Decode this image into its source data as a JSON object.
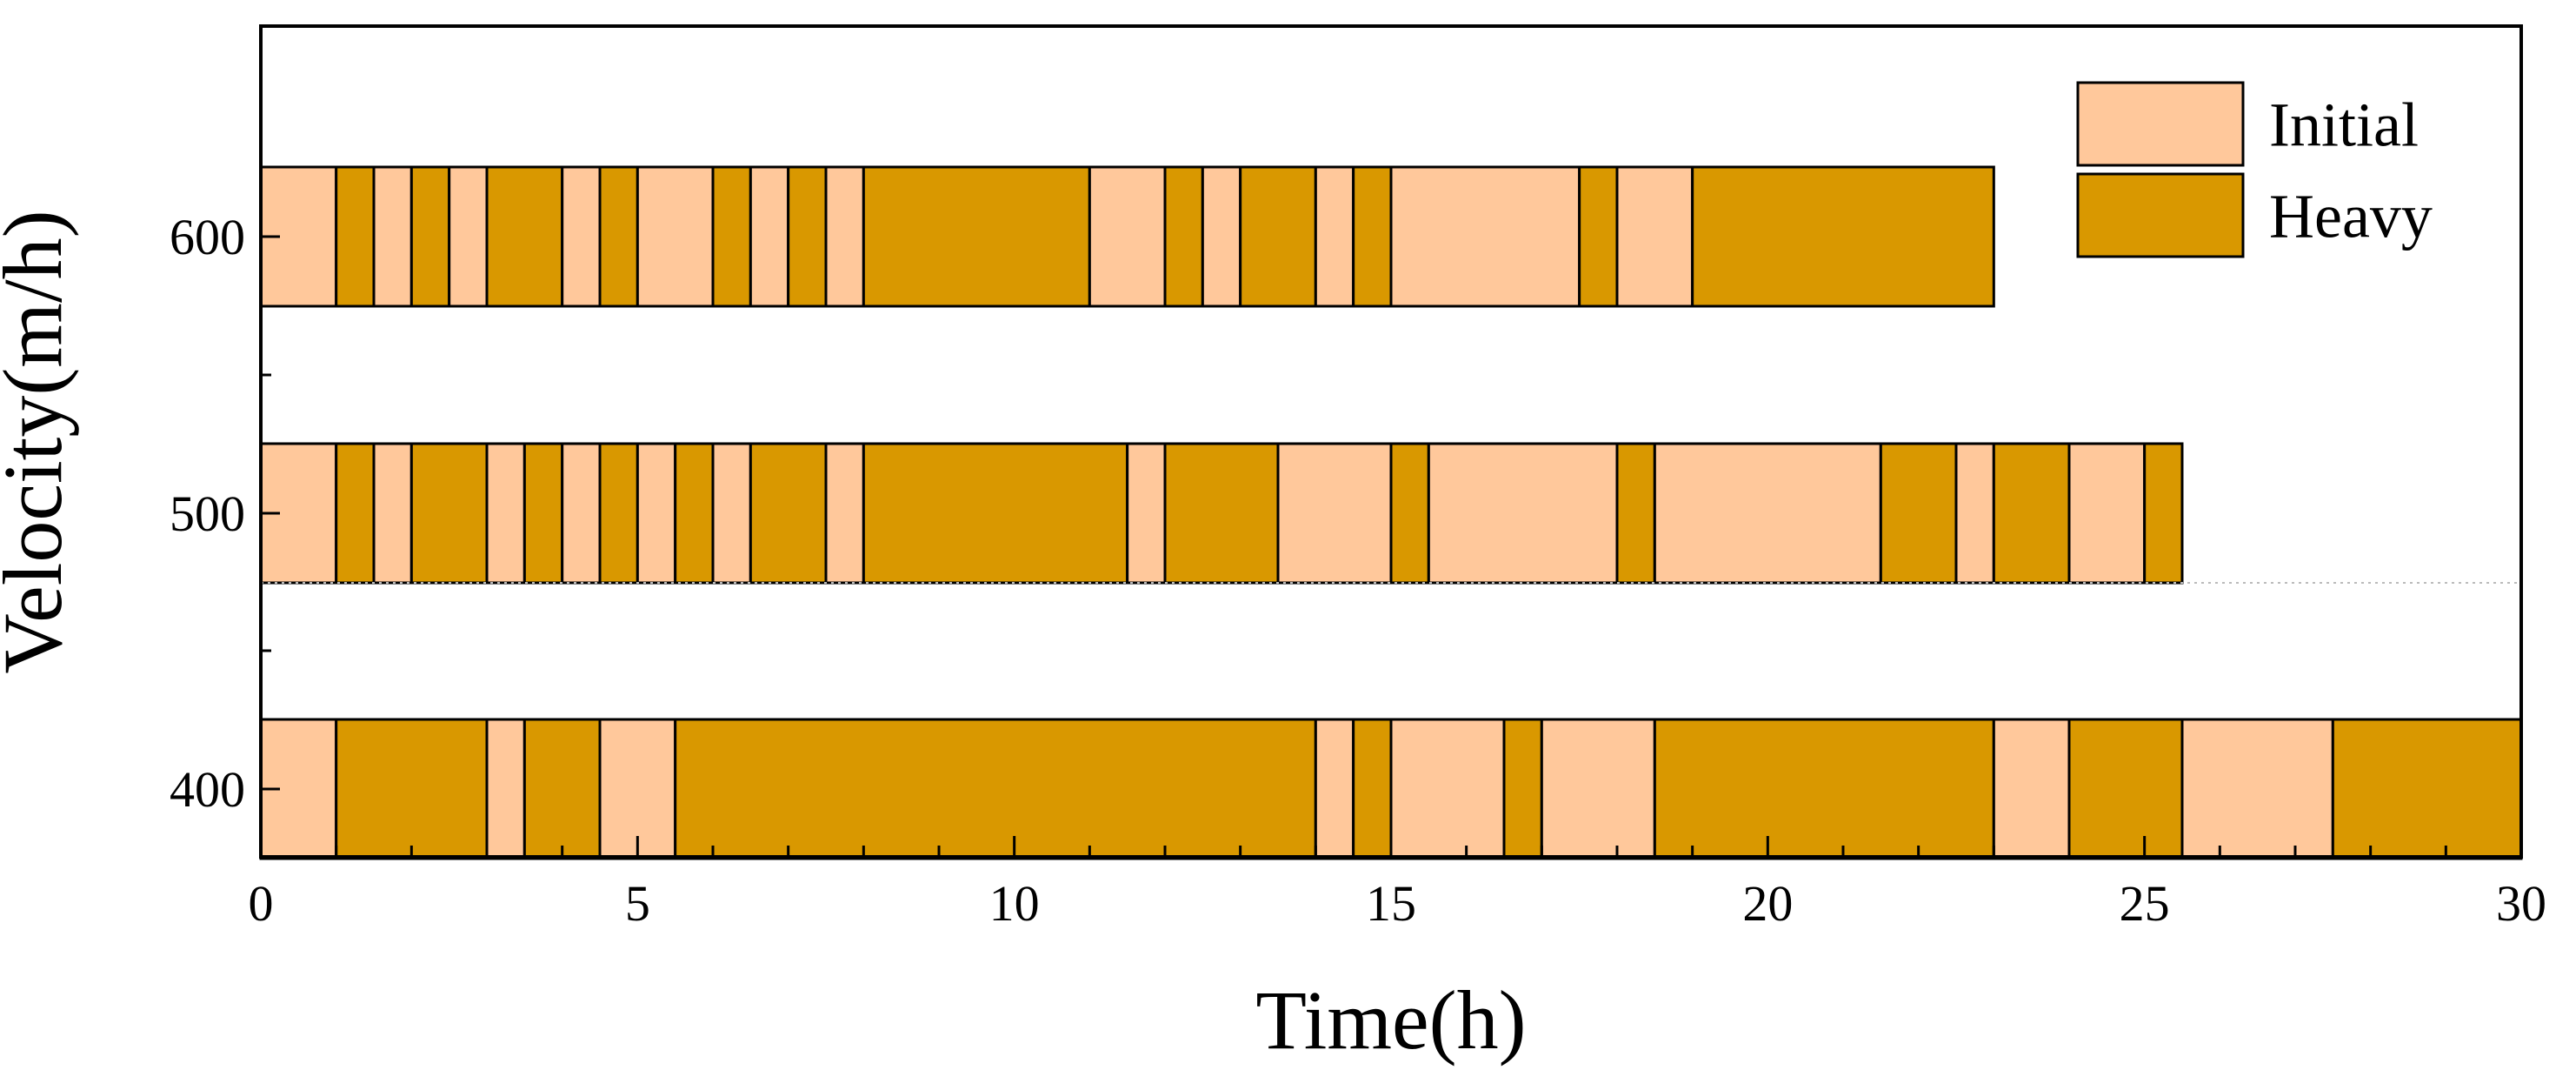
{
  "chart_data": {
    "type": "bar",
    "subtype": "horizontal-stacked-timeline",
    "xlabel": "Time(h)",
    "ylabel": "Velocity(m/h)",
    "xlim": [
      0,
      30
    ],
    "x_ticks": [
      "0",
      "5",
      "10",
      "15",
      "20",
      "25",
      "30"
    ],
    "categories": [
      "600",
      "500",
      "400"
    ],
    "grid": false,
    "legend_position": "top-right",
    "legend": [
      {
        "key": "Initial",
        "label": "Initial",
        "color": "#FFC89B"
      },
      {
        "key": "Heavy",
        "label": "Heavy",
        "color": "#D99800"
      }
    ],
    "series": [
      {
        "velocity": "600",
        "segments": [
          {
            "start": 0,
            "end": 1,
            "state": "Initial"
          },
          {
            "start": 1,
            "end": 1.5,
            "state": "Heavy"
          },
          {
            "start": 1.5,
            "end": 2,
            "state": "Initial"
          },
          {
            "start": 2,
            "end": 2.5,
            "state": "Heavy"
          },
          {
            "start": 2.5,
            "end": 3,
            "state": "Initial"
          },
          {
            "start": 3,
            "end": 4,
            "state": "Heavy"
          },
          {
            "start": 4,
            "end": 4.5,
            "state": "Initial"
          },
          {
            "start": 4.5,
            "end": 5,
            "state": "Heavy"
          },
          {
            "start": 5,
            "end": 6,
            "state": "Initial"
          },
          {
            "start": 6,
            "end": 6.5,
            "state": "Heavy"
          },
          {
            "start": 6.5,
            "end": 7,
            "state": "Initial"
          },
          {
            "start": 7,
            "end": 7.5,
            "state": "Heavy"
          },
          {
            "start": 7.5,
            "end": 8,
            "state": "Initial"
          },
          {
            "start": 8,
            "end": 11,
            "state": "Heavy"
          },
          {
            "start": 11,
            "end": 12,
            "state": "Initial"
          },
          {
            "start": 12,
            "end": 12.5,
            "state": "Heavy"
          },
          {
            "start": 12.5,
            "end": 13,
            "state": "Initial"
          },
          {
            "start": 13,
            "end": 14,
            "state": "Heavy"
          },
          {
            "start": 14,
            "end": 14.5,
            "state": "Initial"
          },
          {
            "start": 14.5,
            "end": 15,
            "state": "Heavy"
          },
          {
            "start": 15,
            "end": 17.5,
            "state": "Initial"
          },
          {
            "start": 17.5,
            "end": 18,
            "state": "Heavy"
          },
          {
            "start": 18,
            "end": 19,
            "state": "Initial"
          },
          {
            "start": 19,
            "end": 23,
            "state": "Heavy"
          }
        ]
      },
      {
        "velocity": "500",
        "segments": [
          {
            "start": 0,
            "end": 1,
            "state": "Initial"
          },
          {
            "start": 1,
            "end": 1.5,
            "state": "Heavy"
          },
          {
            "start": 1.5,
            "end": 2,
            "state": "Initial"
          },
          {
            "start": 2,
            "end": 3,
            "state": "Heavy"
          },
          {
            "start": 3,
            "end": 3.5,
            "state": "Initial"
          },
          {
            "start": 3.5,
            "end": 4,
            "state": "Heavy"
          },
          {
            "start": 4,
            "end": 4.5,
            "state": "Initial"
          },
          {
            "start": 4.5,
            "end": 5,
            "state": "Heavy"
          },
          {
            "start": 5,
            "end": 5.5,
            "state": "Initial"
          },
          {
            "start": 5.5,
            "end": 6,
            "state": "Heavy"
          },
          {
            "start": 6,
            "end": 6.5,
            "state": "Initial"
          },
          {
            "start": 6.5,
            "end": 7.5,
            "state": "Heavy"
          },
          {
            "start": 7.5,
            "end": 8,
            "state": "Initial"
          },
          {
            "start": 8,
            "end": 11.5,
            "state": "Heavy"
          },
          {
            "start": 11.5,
            "end": 12,
            "state": "Initial"
          },
          {
            "start": 12,
            "end": 13.5,
            "state": "Heavy"
          },
          {
            "start": 13.5,
            "end": 15,
            "state": "Initial"
          },
          {
            "start": 15,
            "end": 15.5,
            "state": "Heavy"
          },
          {
            "start": 15.5,
            "end": 18,
            "state": "Initial"
          },
          {
            "start": 18,
            "end": 18.5,
            "state": "Heavy"
          },
          {
            "start": 18.5,
            "end": 21.5,
            "state": "Initial"
          },
          {
            "start": 21.5,
            "end": 22.5,
            "state": "Heavy"
          },
          {
            "start": 22.5,
            "end": 23,
            "state": "Initial"
          },
          {
            "start": 23,
            "end": 24,
            "state": "Heavy"
          },
          {
            "start": 24,
            "end": 25,
            "state": "Initial"
          },
          {
            "start": 25,
            "end": 25.5,
            "state": "Heavy"
          }
        ]
      },
      {
        "velocity": "400",
        "segments": [
          {
            "start": 0,
            "end": 1,
            "state": "Initial"
          },
          {
            "start": 1,
            "end": 3,
            "state": "Heavy"
          },
          {
            "start": 3,
            "end": 3.5,
            "state": "Initial"
          },
          {
            "start": 3.5,
            "end": 4.5,
            "state": "Heavy"
          },
          {
            "start": 4.5,
            "end": 5.5,
            "state": "Initial"
          },
          {
            "start": 5.5,
            "end": 14,
            "state": "Heavy"
          },
          {
            "start": 14,
            "end": 14.5,
            "state": "Initial"
          },
          {
            "start": 14.5,
            "end": 15,
            "state": "Heavy"
          },
          {
            "start": 15,
            "end": 16.5,
            "state": "Initial"
          },
          {
            "start": 16.5,
            "end": 17,
            "state": "Heavy"
          },
          {
            "start": 17,
            "end": 18.5,
            "state": "Initial"
          },
          {
            "start": 18.5,
            "end": 23,
            "state": "Heavy"
          },
          {
            "start": 23,
            "end": 24,
            "state": "Initial"
          },
          {
            "start": 24,
            "end": 25.5,
            "state": "Heavy"
          },
          {
            "start": 25.5,
            "end": 27.5,
            "state": "Initial"
          },
          {
            "start": 27.5,
            "end": 30,
            "state": "Heavy"
          }
        ]
      }
    ]
  }
}
